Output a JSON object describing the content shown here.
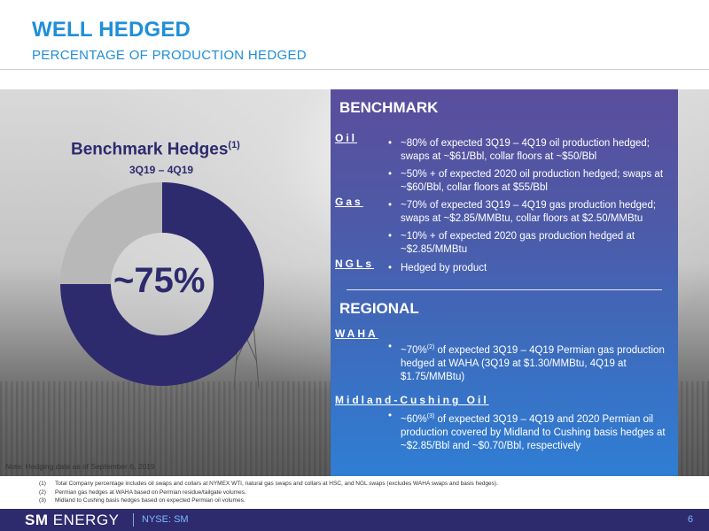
{
  "header": {
    "title": "WELL HEDGED",
    "subtitle": "PERCENTAGE OF PRODUCTION HEDGED"
  },
  "chart": {
    "title": "Benchmark Hedges",
    "title_footnote": "(1)",
    "subtitle": "3Q19 – 4Q19",
    "center_label": "~75%"
  },
  "chart_data": {
    "type": "pie",
    "categories": [
      "Hedged",
      "Unhedged"
    ],
    "values": [
      75,
      25
    ],
    "colors": [
      "#2e2a6e",
      "#b8b8b8"
    ]
  },
  "benchmark": {
    "heading": "BENCHMARK",
    "oil": {
      "label": "Oil",
      "b1": "~80% of expected 3Q19 – 4Q19 oil production hedged; swaps at ~$61/Bbl, collar floors at ~$50/Bbl",
      "b2": "~50% + of expected 2020 oil production hedged; swaps at ~$60/Bbl, collar floors at $55/Bbl"
    },
    "gas": {
      "label": "Gas",
      "b1": "~70% of expected 3Q19 – 4Q19 gas production hedged; swaps at ~$2.85/MMBtu, collar floors at $2.50/MMBtu",
      "b2": "~10% + of expected 2020 gas production hedged at ~$2.85/MMBtu"
    },
    "ngls": {
      "label": "NGLs",
      "b1": "Hedged by product"
    }
  },
  "regional": {
    "heading": "REGIONAL",
    "waha": {
      "label": "WAHA",
      "pre": "~70%",
      "sup": "(2)",
      "post": " of expected 3Q19 – 4Q19 Permian gas production hedged at  WAHA (3Q19 at $1.30/MMBtu, 4Q19 at $1.75/MMBtu)"
    },
    "midland": {
      "label": "Midland-Cushing Oil",
      "pre": "~60%",
      "sup": "(3)",
      "post": " of expected 3Q19 – 4Q19 and 2020 Permian oil production covered by Midland to Cushing basis hedges at ~$2.85/Bbl and ~$0.70/Bbl, respectively"
    }
  },
  "note": "Note: Hedging data as of September 6, 2019",
  "footnotes": [
    {
      "num": "(1)",
      "text": "Total Company percentage includes oil swaps and collars at NYMEX WTI, natural gas swaps and collars at HSC, and NGL swaps (excludes WAHA swaps and basis hedges)."
    },
    {
      "num": "(2)",
      "text": "Permian gas hedges at WAHA based on Permian residue/tailgate volumes."
    },
    {
      "num": "(3)",
      "text": "Midland to Cushing basis hedges based on expected Permian oil volumes."
    }
  ],
  "footer": {
    "logo_bold": "SM",
    "logo_rest": " ENERGY",
    "ticker": "NYSE: SM",
    "page": "6"
  }
}
